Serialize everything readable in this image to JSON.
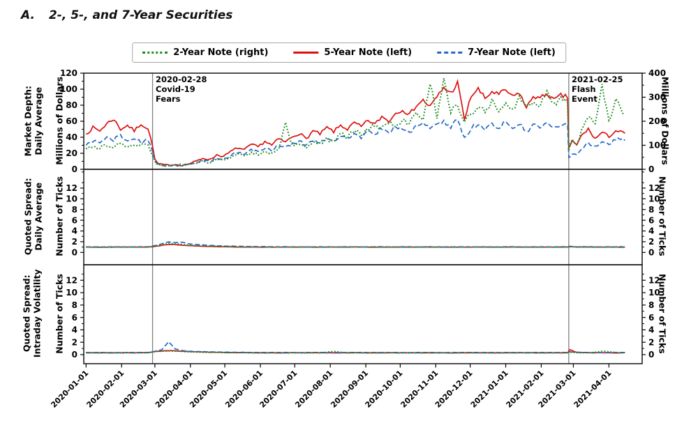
{
  "title": {
    "prefix": "A.",
    "text": "2-, 5-, and 7-Year Securities"
  },
  "legend": {
    "items": [
      {
        "label": "2-Year Note (right)",
        "color": "#1f8b1f",
        "style": "dotted"
      },
      {
        "label": "5-Year Note (left)",
        "color": "#dc1010",
        "style": "solid"
      },
      {
        "label": "7-Year Note (left)",
        "color": "#2569c8",
        "style": "dashed"
      }
    ]
  },
  "colors": {
    "event_line": "#7f7f7f",
    "panel_border": "#141414",
    "tick": "#000000"
  },
  "chart_data": {
    "type": "line",
    "x_axis": {
      "range_days": [
        -2,
        485
      ],
      "start_date": "2020-01-01",
      "tick_days": [
        0,
        31,
        60,
        91,
        121,
        152,
        182,
        213,
        244,
        274,
        305,
        335,
        366,
        397,
        425,
        456
      ],
      "tick_labels": [
        "2020-01-01",
        "2020-02-01",
        "2020-03-01",
        "2020-04-01",
        "2020-05-01",
        "2020-06-01",
        "2020-07-01",
        "2020-08-01",
        "2020-09-01",
        "2020-10-01",
        "2020-11-01",
        "2020-12-01",
        "2021-01-01",
        "2021-02-01",
        "2021-03-01",
        "2021-04-01"
      ]
    },
    "events": [
      {
        "name": "covid",
        "day": 58,
        "lines": [
          "2020-02-28",
          "Covid-19",
          "Fears"
        ]
      },
      {
        "name": "flash",
        "day": 421,
        "lines": [
          "2021-02-25",
          "Flash",
          "Event"
        ]
      }
    ],
    "panels": [
      {
        "name": "market-depth-daily-average",
        "title_lines": [
          "Market Depth:",
          "Daily Average"
        ],
        "left_axis": {
          "label": "Millions of Dollars",
          "ticks": [
            0,
            20,
            40,
            60,
            80,
            100,
            120
          ],
          "range": [
            0,
            120
          ]
        },
        "right_axis": {
          "label": "Millions of Dollars",
          "ticks": [
            0,
            100,
            200,
            300,
            400
          ],
          "range": [
            0,
            400
          ]
        },
        "x_days": [
          0,
          6,
          12,
          18,
          24,
          30,
          36,
          42,
          48,
          54,
          58,
          60,
          63,
          66,
          72,
          78,
          84,
          90,
          96,
          102,
          108,
          114,
          120,
          126,
          132,
          138,
          144,
          150,
          156,
          162,
          168,
          174,
          180,
          186,
          192,
          198,
          204,
          210,
          216,
          222,
          228,
          234,
          240,
          246,
          252,
          258,
          264,
          270,
          276,
          282,
          288,
          294,
          300,
          306,
          312,
          318,
          324,
          330,
          336,
          342,
          348,
          354,
          360,
          366,
          372,
          378,
          384,
          390,
          396,
          402,
          408,
          414,
          420,
          421,
          424,
          428,
          432,
          438,
          444,
          450,
          456,
          462,
          470
        ],
        "series": [
          {
            "name": "5-Year Note (left)",
            "axis": "left",
            "color": "#dc1010",
            "style": "solid",
            "jitter": 3.2,
            "values": [
              44,
              52,
              48,
              57,
              63,
              50,
              55,
              48,
              57,
              50,
              30,
              12,
              7,
              6,
              5,
              6,
              5,
              7,
              10,
              14,
              12,
              18,
              16,
              22,
              27,
              24,
              31,
              28,
              35,
              30,
              38,
              34,
              41,
              45,
              38,
              48,
              44,
              52,
              47,
              55,
              50,
              58,
              53,
              61,
              56,
              66,
              60,
              70,
              75,
              68,
              80,
              86,
              78,
              90,
              102,
              95,
              108,
              62,
              92,
              100,
              88,
              97,
              93,
              99,
              90,
              96,
              76,
              92,
              88,
              95,
              86,
              92,
              90,
              27,
              35,
              30,
              42,
              50,
              38,
              46,
              41,
              48,
              45
            ]
          },
          {
            "name": "7-Year Note (left)",
            "axis": "left",
            "color": "#2569c8",
            "style": "dashed",
            "jitter": 2.8,
            "values": [
              30,
              36,
              33,
              40,
              37,
              42,
              35,
              38,
              34,
              36,
              22,
              10,
              7,
              5,
              4,
              5,
              5,
              6,
              8,
              11,
              10,
              14,
              13,
              17,
              21,
              19,
              24,
              22,
              27,
              24,
              30,
              27,
              32,
              35,
              30,
              37,
              33,
              39,
              36,
              41,
              38,
              44,
              40,
              47,
              43,
              52,
              46,
              53,
              50,
              46,
              54,
              57,
              51,
              55,
              60,
              53,
              63,
              38,
              52,
              57,
              50,
              56,
              53,
              58,
              52,
              57,
              46,
              55,
              52,
              58,
              51,
              56,
              55,
              14,
              20,
              18,
              26,
              33,
              28,
              35,
              31,
              38,
              36
            ]
          },
          {
            "name": "2-Year Note (right)",
            "axis": "right",
            "color": "#1f8b1f",
            "style": "dotted",
            "jitter": 16,
            "values": [
              85,
              95,
              90,
              100,
              95,
              105,
              98,
              106,
              100,
              103,
              60,
              30,
              22,
              18,
              15,
              18,
              16,
              20,
              25,
              32,
              30,
              40,
              38,
              50,
              60,
              55,
              68,
              62,
              75,
              68,
              85,
              200,
              95,
              105,
              90,
              115,
              110,
              125,
              115,
              150,
              135,
              160,
              145,
              165,
              185,
              170,
              200,
              180,
              210,
              190,
              230,
              205,
              370,
              220,
              380,
              240,
              260,
              200,
              230,
              270,
              240,
              280,
              250,
              270,
              240,
              300,
              255,
              285,
              260,
              330,
              270,
              300,
              280,
              80,
              120,
              100,
              160,
              220,
              180,
              340,
              200,
              290,
              230
            ]
          }
        ]
      },
      {
        "name": "quoted-spread-daily-average",
        "title_lines": [
          "Quoted Spread:",
          "Daily Average"
        ],
        "left_axis": {
          "label": "Number of Ticks",
          "ticks": [
            0,
            2,
            4,
            6,
            8,
            10,
            12
          ],
          "range": [
            -2.3,
            15.5
          ]
        },
        "right_axis": {
          "label": "Number of Ticks",
          "ticks": [
            0,
            2,
            4,
            6,
            8,
            10,
            12
          ],
          "range": [
            -2.3,
            15.5
          ]
        },
        "x_days": [
          0,
          12,
          24,
          36,
          48,
          54,
          60,
          66,
          72,
          78,
          84,
          90,
          96,
          108,
          120,
          132,
          144,
          156,
          168,
          180,
          192,
          204,
          216,
          228,
          240,
          252,
          264,
          276,
          288,
          300,
          312,
          324,
          336,
          348,
          360,
          372,
          384,
          396,
          408,
          420,
          422,
          428,
          440,
          452,
          464,
          470
        ],
        "series": [
          {
            "name": "5-Year Note (left)",
            "axis": "left",
            "color": "#dc1010",
            "style": "solid",
            "jitter": 0.03,
            "values": [
              1.0,
              0.98,
              1.0,
              1.0,
              0.98,
              1.0,
              1.1,
              1.3,
              1.5,
              1.45,
              1.35,
              1.25,
              1.2,
              1.1,
              1.05,
              1.0,
              1.0,
              0.98,
              1.0,
              1.0,
              1.0,
              0.98,
              1.0,
              1.0,
              1.0,
              0.98,
              1.0,
              1.0,
              0.98,
              1.0,
              1.0,
              1.0,
              0.98,
              1.0,
              1.0,
              1.0,
              0.98,
              1.0,
              1.0,
              1.0,
              1.1,
              1.0,
              1.0,
              1.0,
              0.98,
              1.0
            ]
          },
          {
            "name": "7-Year Note (left)",
            "axis": "left",
            "color": "#2569c8",
            "style": "dashed",
            "jitter": 0.04,
            "values": [
              1.05,
              1.02,
              1.05,
              1.02,
              1.05,
              1.05,
              1.25,
              1.6,
              2.0,
              1.85,
              1.9,
              1.6,
              1.5,
              1.3,
              1.2,
              1.15,
              1.1,
              1.08,
              1.05,
              1.05,
              1.02,
              1.05,
              1.02,
              1.05,
              1.02,
              1.05,
              1.02,
              1.05,
              1.02,
              1.05,
              1.02,
              1.05,
              1.02,
              1.05,
              1.02,
              1.05,
              1.02,
              1.05,
              1.02,
              1.05,
              1.15,
              1.05,
              1.05,
              1.02,
              1.05,
              1.05
            ]
          },
          {
            "name": "2-Year Note (right)",
            "axis": "right",
            "color": "#1f8b1f",
            "style": "dotted",
            "jitter": 0.035,
            "values": [
              1.0,
              1.0,
              0.98,
              1.0,
              1.0,
              1.02,
              1.15,
              1.45,
              1.7,
              1.6,
              1.5,
              1.35,
              1.25,
              1.15,
              1.1,
              1.05,
              1.0,
              1.0,
              1.0,
              1.0,
              0.98,
              1.0,
              1.0,
              0.98,
              1.0,
              1.0,
              1.0,
              0.98,
              1.0,
              1.0,
              1.0,
              0.98,
              1.0,
              1.0,
              0.98,
              1.0,
              1.0,
              1.0,
              0.98,
              1.0,
              1.05,
              1.0,
              1.0,
              0.98,
              1.0,
              1.0
            ]
          }
        ]
      },
      {
        "name": "quoted-spread-intraday-volatility",
        "title_lines": [
          "Quoted Spread:",
          "Intraday Volatility"
        ],
        "left_axis": {
          "label": "Number of Ticks",
          "ticks": [
            0,
            2,
            4,
            6,
            8,
            10,
            12
          ],
          "range": [
            -1.46,
            14.5
          ]
        },
        "right_axis": {
          "label": "Number of Ticks",
          "ticks": [
            0,
            2,
            4,
            6,
            8,
            10,
            12
          ],
          "range": [
            -1.46,
            14.5
          ]
        },
        "x_days": [
          0,
          12,
          24,
          36,
          48,
          54,
          60,
          66,
          72,
          78,
          84,
          90,
          96,
          108,
          120,
          132,
          144,
          156,
          168,
          180,
          192,
          204,
          216,
          228,
          240,
          252,
          264,
          276,
          288,
          300,
          312,
          324,
          336,
          348,
          360,
          372,
          384,
          396,
          408,
          420,
          422,
          428,
          440,
          452,
          464,
          470
        ],
        "series": [
          {
            "name": "5-Year Note (left)",
            "axis": "left",
            "color": "#dc1010",
            "style": "solid",
            "jitter": 0.03,
            "values": [
              0.3,
              0.3,
              0.28,
              0.3,
              0.3,
              0.32,
              0.5,
              0.6,
              0.65,
              0.6,
              0.55,
              0.5,
              0.45,
              0.4,
              0.35,
              0.32,
              0.3,
              0.3,
              0.28,
              0.3,
              0.3,
              0.3,
              0.28,
              0.3,
              0.3,
              0.28,
              0.3,
              0.3,
              0.28,
              0.3,
              0.3,
              0.28,
              0.3,
              0.3,
              0.28,
              0.3,
              0.3,
              0.28,
              0.3,
              0.3,
              0.8,
              0.35,
              0.3,
              0.3,
              0.28,
              0.3
            ]
          },
          {
            "name": "7-Year Note (left)",
            "axis": "left",
            "color": "#2569c8",
            "style": "dashed",
            "jitter": 0.04,
            "values": [
              0.35,
              0.35,
              0.33,
              0.35,
              0.35,
              0.36,
              0.55,
              0.8,
              2.1,
              0.9,
              0.65,
              0.55,
              0.5,
              0.45,
              0.4,
              0.38,
              0.36,
              0.35,
              0.35,
              0.33,
              0.35,
              0.35,
              0.33,
              0.35,
              0.35,
              0.33,
              0.35,
              0.33,
              0.35,
              0.35,
              0.33,
              0.35,
              0.35,
              0.33,
              0.35,
              0.35,
              0.33,
              0.35,
              0.35,
              0.35,
              0.45,
              0.38,
              0.35,
              0.33,
              0.35,
              0.35
            ]
          },
          {
            "name": "2-Year Note (right)",
            "axis": "right",
            "color": "#1f8b1f",
            "style": "dotted",
            "jitter": 0.03,
            "values": [
              0.3,
              0.28,
              0.3,
              0.3,
              0.28,
              0.3,
              0.45,
              0.55,
              0.6,
              0.55,
              0.5,
              0.45,
              0.42,
              0.38,
              0.33,
              0.3,
              0.3,
              0.28,
              0.3,
              0.3,
              0.28,
              0.3,
              0.5,
              0.3,
              0.28,
              0.3,
              0.3,
              0.28,
              0.3,
              0.3,
              0.28,
              0.3,
              0.3,
              0.28,
              0.3,
              0.3,
              0.28,
              0.3,
              0.3,
              0.3,
              0.4,
              0.32,
              0.3,
              0.55,
              0.3,
              0.3
            ]
          }
        ]
      }
    ]
  }
}
